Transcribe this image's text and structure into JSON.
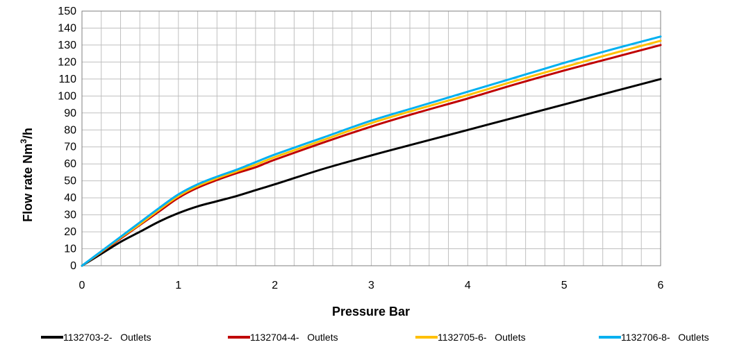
{
  "chart_data": {
    "type": "line",
    "title": "",
    "xlabel": "Pressure Bar",
    "ylabel": "Flow rate Nm",
    "ylabel_superscript": "3",
    "ylabel_suffix": "/h",
    "xlim": [
      0,
      6
    ],
    "ylim": [
      0,
      150
    ],
    "x_ticks": [
      0,
      1,
      2,
      3,
      4,
      5,
      6
    ],
    "y_ticks": [
      0,
      10,
      20,
      30,
      40,
      50,
      60,
      70,
      80,
      90,
      100,
      110,
      120,
      130,
      140,
      150
    ],
    "x_minor_step": 0.2,
    "grid": true,
    "legend_position": "bottom",
    "series": [
      {
        "name": "1132703-2-   Outlets",
        "color": "#000000",
        "points": [
          [
            0,
            0
          ],
          [
            0.2,
            7
          ],
          [
            0.4,
            14
          ],
          [
            0.6,
            20
          ],
          [
            0.8,
            26
          ],
          [
            1,
            31
          ],
          [
            1.2,
            35
          ],
          [
            1.4,
            38
          ],
          [
            1.6,
            41
          ],
          [
            1.8,
            44.5
          ],
          [
            2,
            48
          ],
          [
            2.5,
            57
          ],
          [
            3,
            65
          ],
          [
            3.5,
            72.5
          ],
          [
            4,
            80
          ],
          [
            4.5,
            87.5
          ],
          [
            5,
            95
          ],
          [
            5.5,
            102.5
          ],
          [
            6,
            110
          ]
        ]
      },
      {
        "name": "1132704-4-   Outlets",
        "color": "#c00000",
        "points": [
          [
            0,
            0
          ],
          [
            0.2,
            8
          ],
          [
            0.4,
            16
          ],
          [
            0.6,
            24
          ],
          [
            0.8,
            32
          ],
          [
            1,
            40
          ],
          [
            1.2,
            46
          ],
          [
            1.4,
            50.5
          ],
          [
            1.6,
            54.5
          ],
          [
            1.8,
            58
          ],
          [
            2,
            62.5
          ],
          [
            2.5,
            72.5
          ],
          [
            3,
            82
          ],
          [
            3.5,
            90.5
          ],
          [
            4,
            98.5
          ],
          [
            4.5,
            107
          ],
          [
            5,
            115
          ],
          [
            5.5,
            122.5
          ],
          [
            6,
            130
          ]
        ]
      },
      {
        "name": "1132705-6-   Outlets",
        "color": "#ffc000",
        "points": [
          [
            0,
            0
          ],
          [
            0.2,
            8.2
          ],
          [
            0.4,
            16.5
          ],
          [
            0.6,
            24.5
          ],
          [
            0.8,
            33
          ],
          [
            1,
            41
          ],
          [
            1.2,
            47
          ],
          [
            1.4,
            51.5
          ],
          [
            1.6,
            55.5
          ],
          [
            1.8,
            59.5
          ],
          [
            2,
            64
          ],
          [
            2.5,
            74
          ],
          [
            3,
            84
          ],
          [
            3.5,
            92.5
          ],
          [
            4,
            100.5
          ],
          [
            4.5,
            109
          ],
          [
            5,
            117
          ],
          [
            5.5,
            125
          ],
          [
            6,
            132.5
          ]
        ]
      },
      {
        "name": "1132706-8-   Outlets",
        "color": "#00b0f0",
        "points": [
          [
            0,
            0
          ],
          [
            0.2,
            8.5
          ],
          [
            0.4,
            17
          ],
          [
            0.6,
            25.5
          ],
          [
            0.8,
            34
          ],
          [
            1,
            42
          ],
          [
            1.2,
            48
          ],
          [
            1.4,
            52.5
          ],
          [
            1.6,
            56.5
          ],
          [
            1.8,
            61
          ],
          [
            2,
            65.5
          ],
          [
            2.5,
            75.5
          ],
          [
            3,
            85.5
          ],
          [
            3.5,
            94
          ],
          [
            4,
            102.5
          ],
          [
            4.5,
            111
          ],
          [
            5,
            119.5
          ],
          [
            5.5,
            127.5
          ],
          [
            6,
            135
          ]
        ]
      }
    ]
  }
}
